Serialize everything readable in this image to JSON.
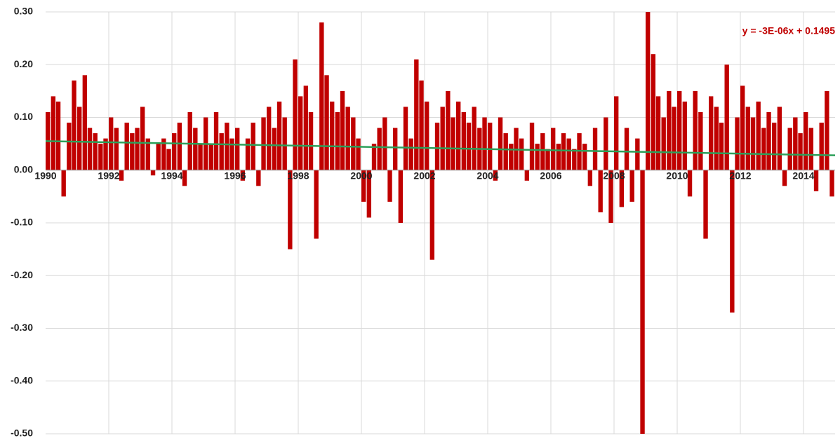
{
  "chart_data": {
    "type": "bar",
    "color": "#c00000",
    "grid": true,
    "xlim": [
      1990,
      2015
    ],
    "xticks": [
      1990,
      1992,
      1994,
      1996,
      1998,
      2000,
      2002,
      2004,
      2006,
      2008,
      2010,
      2012,
      2014
    ],
    "ylim": [
      -0.5,
      0.3
    ],
    "yticks": [
      {
        "value": -0.5,
        "label": "-0.50"
      },
      {
        "value": -0.4,
        "label": "-0.40"
      },
      {
        "value": -0.3,
        "label": "-0.30"
      },
      {
        "value": -0.2,
        "label": "-0.20"
      },
      {
        "value": -0.1,
        "label": "-0.10"
      },
      {
        "value": 0,
        "label": "0.00"
      },
      {
        "value": 0.1,
        "label": "0.10"
      },
      {
        "value": 0.2,
        "label": "0.20"
      },
      {
        "value": 0.3,
        "label": "0.30"
      }
    ],
    "x": [
      1990,
      1990.17,
      1990.33,
      1990.5,
      1990.67,
      1990.83,
      1991,
      1991.17,
      1991.33,
      1991.5,
      1991.67,
      1991.83,
      1992,
      1992.17,
      1992.33,
      1992.5,
      1992.67,
      1992.83,
      1993,
      1993.17,
      1993.33,
      1993.5,
      1993.67,
      1993.83,
      1994,
      1994.17,
      1994.33,
      1994.5,
      1994.67,
      1994.83,
      1995,
      1995.17,
      1995.33,
      1995.5,
      1995.67,
      1995.83,
      1996,
      1996.17,
      1996.33,
      1996.5,
      1996.67,
      1996.83,
      1997,
      1997.17,
      1997.33,
      1997.5,
      1997.67,
      1997.83,
      1998,
      1998.17,
      1998.33,
      1998.5,
      1998.67,
      1998.83,
      1999,
      1999.17,
      1999.33,
      1999.5,
      1999.67,
      1999.83,
      2000,
      2000.17,
      2000.33,
      2000.5,
      2000.67,
      2000.83,
      2001,
      2001.17,
      2001.33,
      2001.5,
      2001.67,
      2001.83,
      2002,
      2002.17,
      2002.33,
      2002.5,
      2002.67,
      2002.83,
      2003,
      2003.17,
      2003.33,
      2003.5,
      2003.67,
      2003.83,
      2004,
      2004.17,
      2004.33,
      2004.5,
      2004.67,
      2004.83,
      2005,
      2005.17,
      2005.33,
      2005.5,
      2005.67,
      2005.83,
      2006,
      2006.17,
      2006.33,
      2006.5,
      2006.67,
      2006.83,
      2007,
      2007.17,
      2007.33,
      2007.5,
      2007.67,
      2007.83,
      2008,
      2008.17,
      2008.33,
      2008.5,
      2008.67,
      2008.83,
      2009,
      2009.17,
      2009.33,
      2009.5,
      2009.67,
      2009.83,
      2010,
      2010.17,
      2010.33,
      2010.5,
      2010.67,
      2010.83,
      2011,
      2011.17,
      2011.33,
      2011.5,
      2011.67,
      2011.83,
      2012,
      2012.17,
      2012.33,
      2012.5,
      2012.67,
      2012.83,
      2013,
      2013.17,
      2013.33,
      2013.5,
      2013.67,
      2013.83,
      2014,
      2014.17,
      2014.33,
      2014.5,
      2014.67,
      2014.83
    ],
    "values": [
      0.11,
      0.14,
      0.13,
      -0.05,
      0.09,
      0.17,
      0.12,
      0.18,
      0.08,
      0.07,
      0.05,
      0.06,
      0.1,
      0.08,
      -0.02,
      0.09,
      0.07,
      0.08,
      0.12,
      0.06,
      -0.01,
      0.05,
      0.06,
      0.04,
      0.07,
      0.09,
      -0.03,
      0.11,
      0.08,
      0.05,
      0.1,
      0.05,
      0.11,
      0.07,
      0.09,
      0.06,
      0.08,
      -0.02,
      0.06,
      0.09,
      -0.03,
      0.1,
      0.12,
      0.08,
      0.13,
      0.1,
      -0.15,
      0.21,
      0.14,
      0.16,
      0.11,
      -0.13,
      0.28,
      0.18,
      0.13,
      0.11,
      0.15,
      0.12,
      0.1,
      0.06,
      -0.06,
      -0.09,
      0.05,
      0.08,
      0.1,
      -0.06,
      0.08,
      -0.1,
      0.12,
      0.06,
      0.21,
      0.17,
      0.13,
      -0.17,
      0.09,
      0.12,
      0.15,
      0.1,
      0.13,
      0.11,
      0.09,
      0.12,
      0.08,
      0.1,
      0.09,
      -0.02,
      0.1,
      0.07,
      0.05,
      0.08,
      0.06,
      -0.02,
      0.09,
      0.05,
      0.07,
      0.04,
      0.08,
      0.05,
      0.07,
      0.06,
      0.04,
      0.07,
      0.05,
      -0.03,
      0.08,
      -0.08,
      0.1,
      -0.1,
      0.14,
      -0.07,
      0.08,
      -0.06,
      0.06,
      -0.5,
      0.3,
      0.22,
      0.14,
      0.1,
      0.15,
      0.12,
      0.15,
      0.13,
      -0.05,
      0.15,
      0.11,
      -0.13,
      0.14,
      0.12,
      0.09,
      0.2,
      -0.27,
      0.1,
      0.16,
      0.12,
      0.1,
      0.13,
      0.08,
      0.11,
      0.09,
      0.12,
      -0.03,
      0.08,
      0.1,
      0.07,
      0.11,
      0.08,
      -0.04,
      0.09,
      0.15,
      -0.05
    ],
    "trendline": {
      "label": "y = -3E-06x + 0.1495",
      "color": "#2ca05a",
      "label_color": "#c00000",
      "x": [
        1990,
        2015
      ],
      "values": [
        0.055,
        0.028
      ]
    }
  }
}
